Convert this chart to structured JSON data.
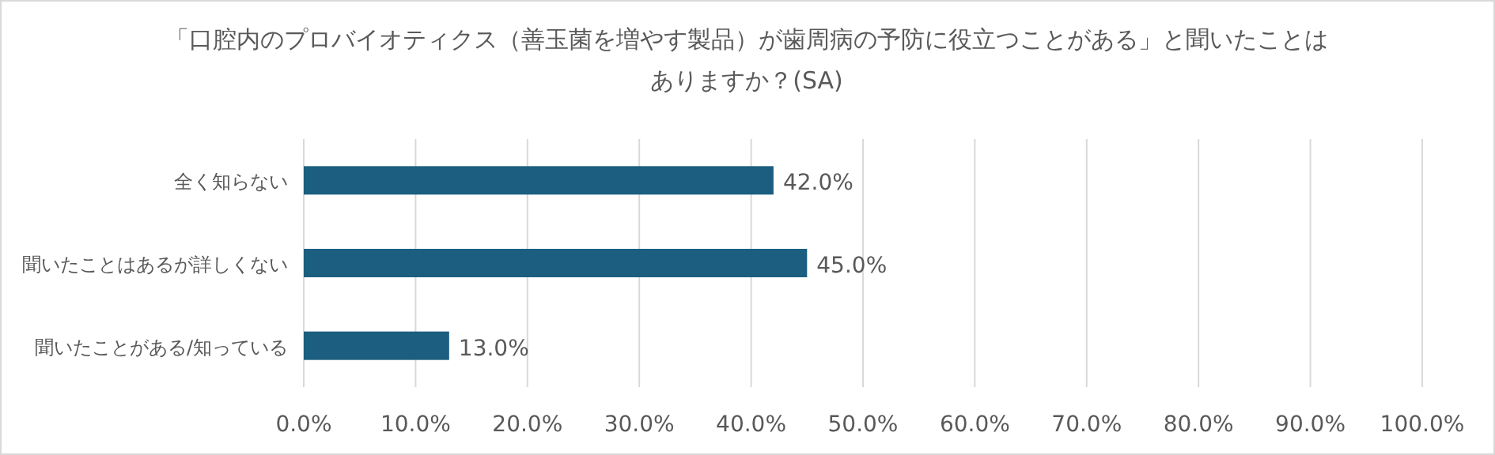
{
  "chart_data": {
    "type": "bar",
    "orientation": "horizontal",
    "title": "「口腔内のプロバイオティクス（善玉菌を増やす製品）が歯周病の予防に役立つことがある」と聞いたことはありますか？(SA)",
    "categories": [
      "全く知らない",
      "聞いたことはあるが詳しくない",
      "聞いたことがある/知っている"
    ],
    "values": [
      42,
      45,
      13
    ],
    "value_labels": [
      "42.0%",
      "45.0%",
      "13.0%"
    ],
    "color": "#1b5e80",
    "xlim": [
      0,
      100
    ],
    "xticks": [
      {
        "value": 0,
        "label": "0.0%"
      },
      {
        "value": 10,
        "label": "10.0%"
      },
      {
        "value": 20,
        "label": "20.0%"
      },
      {
        "value": 30,
        "label": "30.0%"
      },
      {
        "value": 40,
        "label": "40.0%"
      },
      {
        "value": 50,
        "label": "50.0%"
      },
      {
        "value": 60,
        "label": "60.0%"
      },
      {
        "value": 70,
        "label": "70.0%"
      },
      {
        "value": 80,
        "label": "80.0%"
      },
      {
        "value": 90,
        "label": "90.0%"
      },
      {
        "value": 100,
        "label": "100.0%"
      }
    ],
    "grid": "x"
  }
}
